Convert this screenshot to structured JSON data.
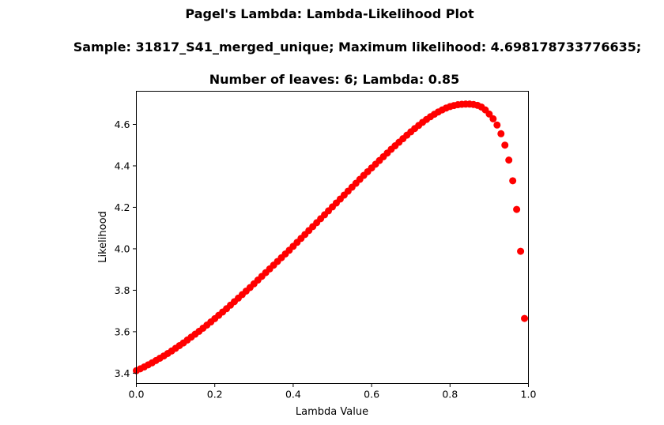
{
  "chart_data": {
    "type": "scatter",
    "title_lines": [
      "Pagel's Lambda: Lambda-Likelihood Plot",
      "Sample: 31817_S41_merged_unique; Maximum likelihood: 4.698178733776635;",
      "Number of leaves: 6; Lambda: 0.85"
    ],
    "xlabel": "Lambda Value",
    "ylabel": "Likelihood",
    "xlim": [
      0.0,
      1.0
    ],
    "ylim": [
      3.35,
      4.76
    ],
    "xticks": [
      0.0,
      0.2,
      0.4,
      0.6,
      0.8,
      1.0
    ],
    "xtick_labels": [
      "0.0",
      "0.2",
      "0.4",
      "0.6",
      "0.8",
      "1.0"
    ],
    "yticks": [
      3.4,
      3.6,
      3.8,
      4.0,
      4.2,
      4.4,
      4.6
    ],
    "ytick_labels": [
      "3.4",
      "3.6",
      "3.8",
      "4.0",
      "4.2",
      "4.4",
      "4.6"
    ],
    "grid": false,
    "marker_color": "#ff0000",
    "x": [
      0.0,
      0.01,
      0.02,
      0.03,
      0.04,
      0.05,
      0.06,
      0.07,
      0.08,
      0.09,
      0.1,
      0.11,
      0.12,
      0.13,
      0.14,
      0.15,
      0.16,
      0.17,
      0.18,
      0.19,
      0.2,
      0.21,
      0.22,
      0.23,
      0.24,
      0.25,
      0.26,
      0.27,
      0.28,
      0.29,
      0.3,
      0.31,
      0.32,
      0.33,
      0.34,
      0.35,
      0.36,
      0.37,
      0.38,
      0.39,
      0.4,
      0.41,
      0.42,
      0.43,
      0.44,
      0.45,
      0.46,
      0.47,
      0.48,
      0.49,
      0.5,
      0.51,
      0.52,
      0.53,
      0.54,
      0.55,
      0.56,
      0.57,
      0.58,
      0.59,
      0.6,
      0.61,
      0.62,
      0.63,
      0.64,
      0.65,
      0.66,
      0.67,
      0.68,
      0.69,
      0.7,
      0.71,
      0.72,
      0.73,
      0.74,
      0.75,
      0.76,
      0.77,
      0.78,
      0.79,
      0.8,
      0.81,
      0.82,
      0.83,
      0.84,
      0.85,
      0.86,
      0.87,
      0.88,
      0.89,
      0.9,
      0.91,
      0.92,
      0.93,
      0.94,
      0.95,
      0.96,
      0.97,
      0.98,
      0.99
    ],
    "y": [
      3.412,
      3.421,
      3.43,
      3.44,
      3.45,
      3.461,
      3.472,
      3.483,
      3.495,
      3.507,
      3.52,
      3.533,
      3.546,
      3.56,
      3.574,
      3.588,
      3.602,
      3.617,
      3.632,
      3.647,
      3.663,
      3.679,
      3.695,
      3.711,
      3.728,
      3.745,
      3.762,
      3.779,
      3.796,
      3.813,
      3.831,
      3.849,
      3.867,
      3.885,
      3.903,
      3.921,
      3.939,
      3.957,
      3.975,
      3.993,
      4.012,
      4.031,
      4.05,
      4.069,
      4.088,
      4.107,
      4.126,
      4.145,
      4.164,
      4.183,
      4.202,
      4.221,
      4.24,
      4.259,
      4.278,
      4.297,
      4.316,
      4.335,
      4.354,
      4.372,
      4.39,
      4.408,
      4.426,
      4.444,
      4.462,
      4.48,
      4.497,
      4.514,
      4.531,
      4.548,
      4.564,
      4.58,
      4.595,
      4.61,
      4.624,
      4.637,
      4.649,
      4.66,
      4.67,
      4.679,
      4.686,
      4.691,
      4.695,
      4.697,
      4.698,
      4.698,
      4.696,
      4.692,
      4.684,
      4.67,
      4.65,
      4.627,
      4.597,
      4.555,
      4.5,
      4.428,
      4.328,
      4.19,
      3.988,
      3.664
    ]
  }
}
